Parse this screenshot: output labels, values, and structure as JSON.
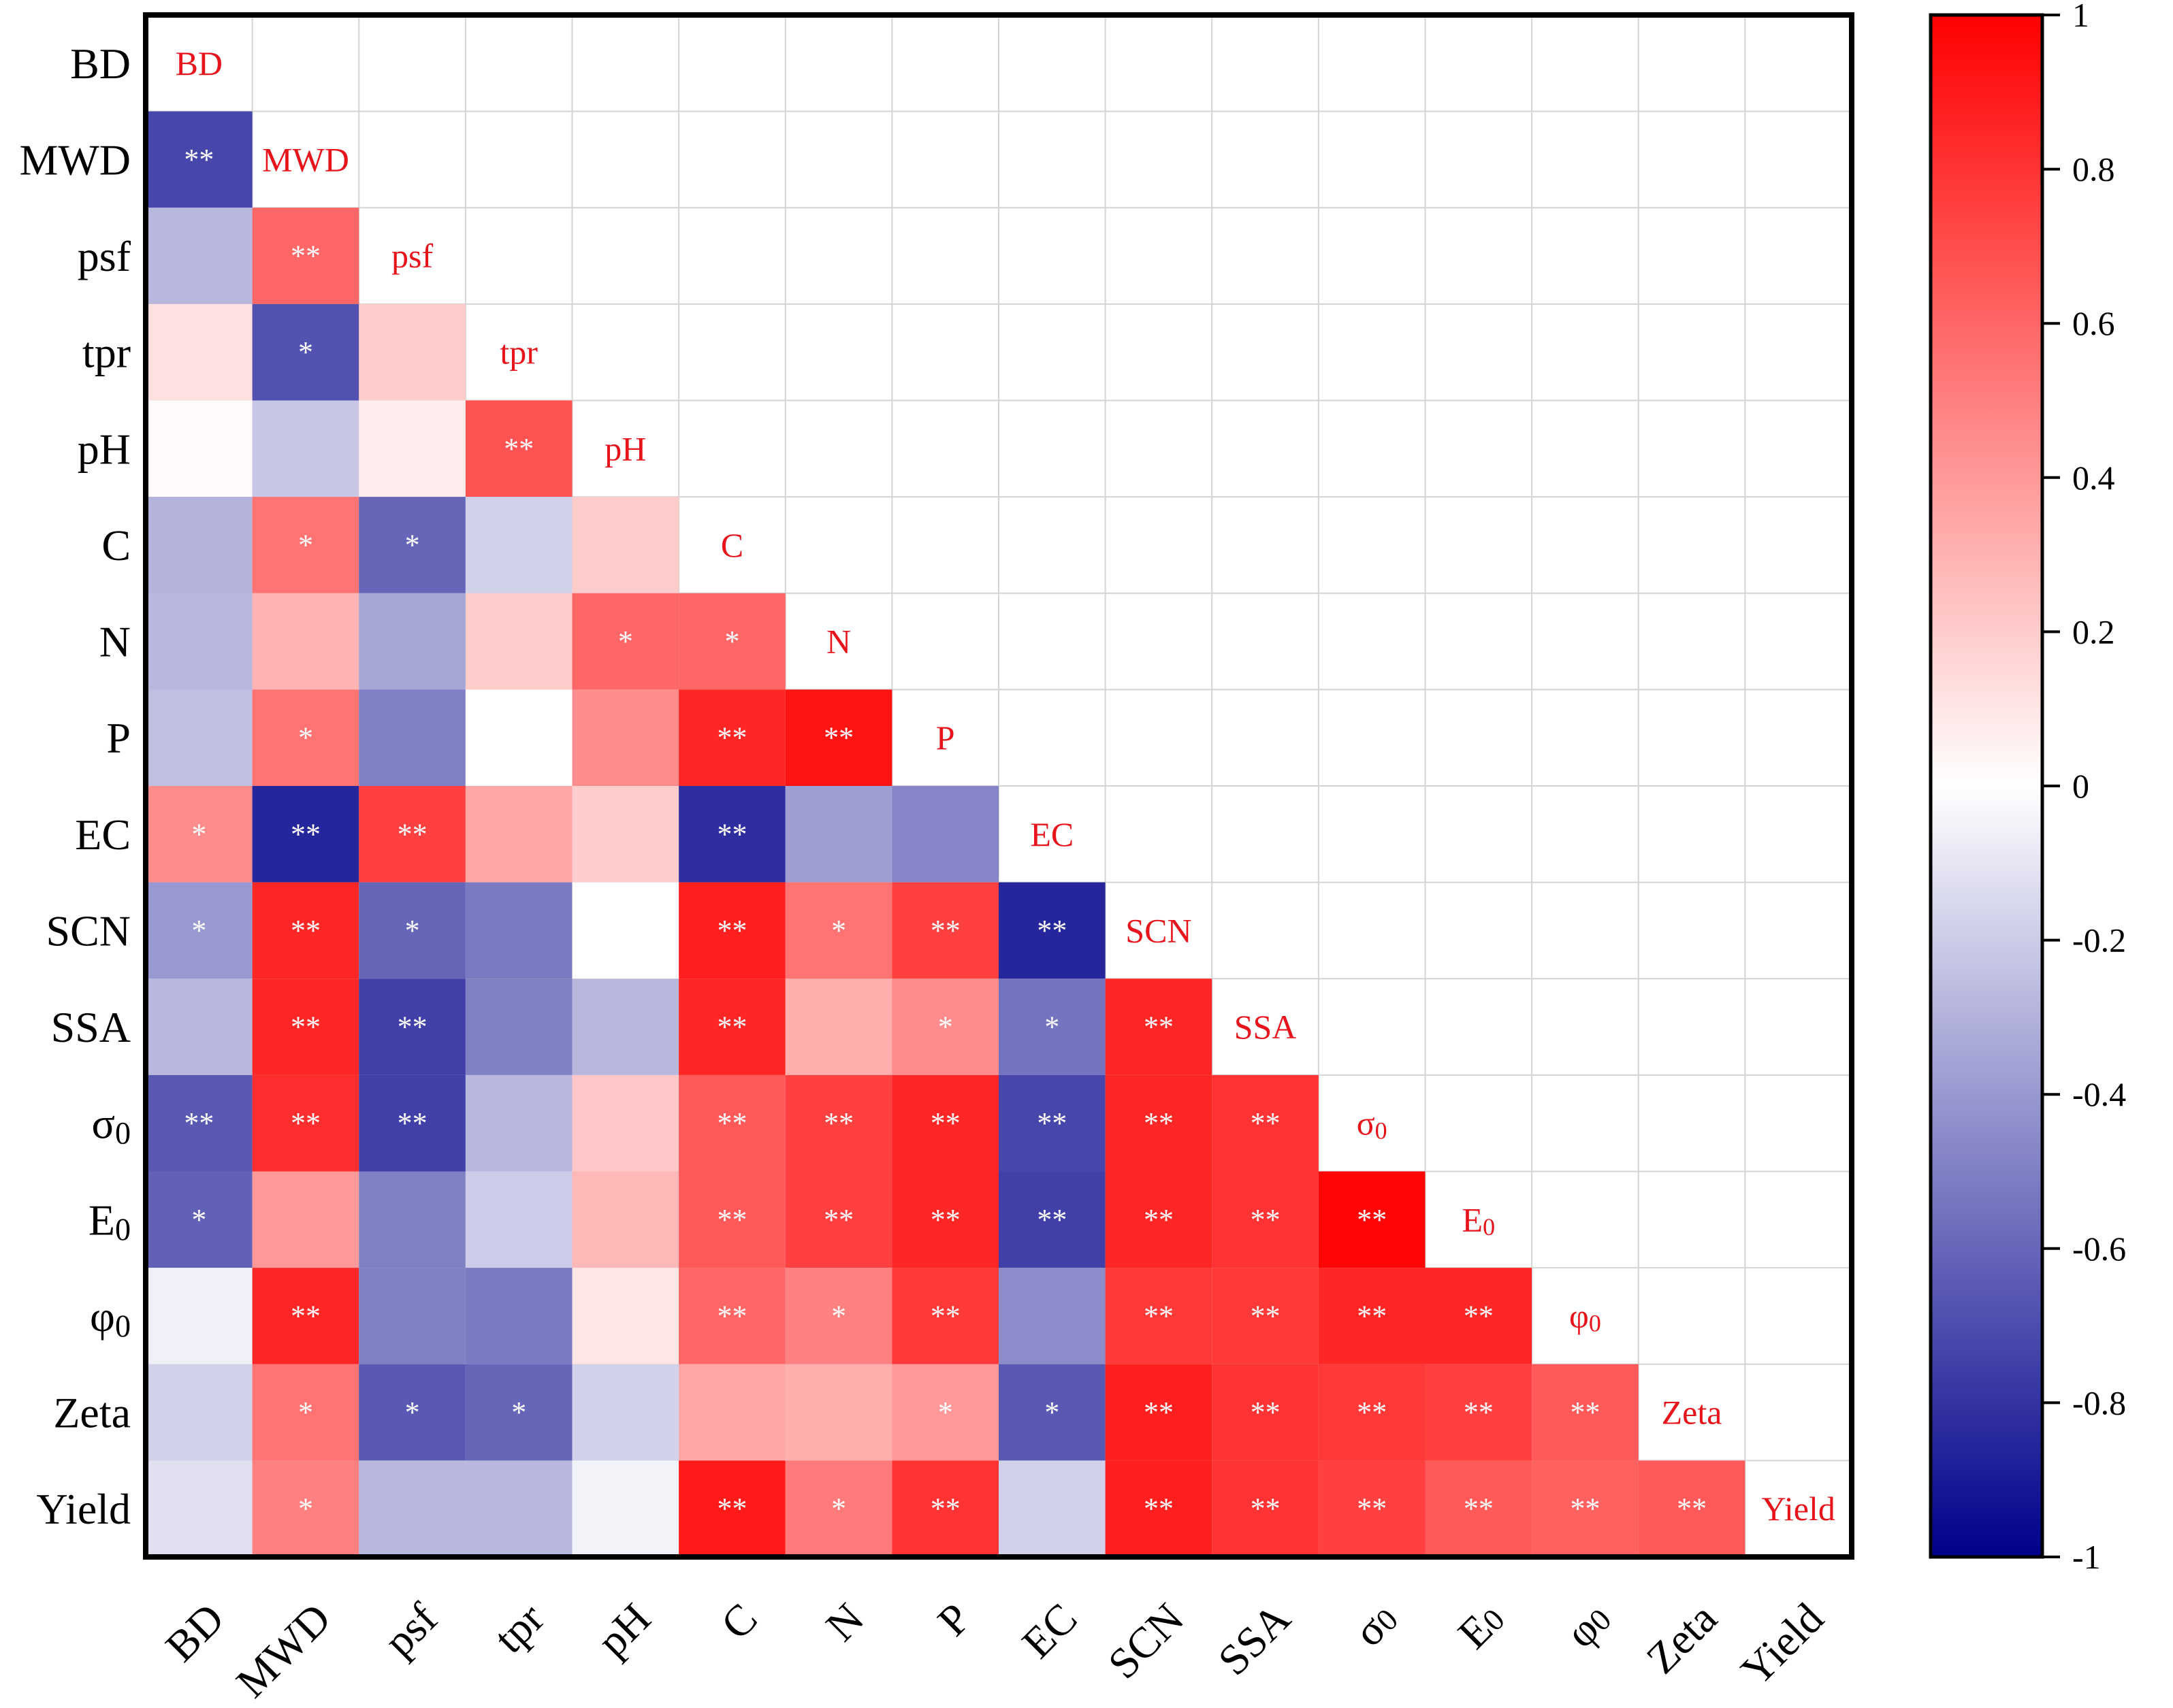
{
  "chart_data": {
    "type": "heatmap",
    "title": "",
    "variables": [
      "BD",
      "MWD",
      "psf",
      "tpr",
      "pH",
      "C",
      "N",
      "P",
      "EC",
      "SCN",
      "SSA",
      "σ0",
      "E0",
      "φ0",
      "Zeta",
      "Yield"
    ],
    "variable_labels": [
      {
        "base": "BD",
        "sub": ""
      },
      {
        "base": "MWD",
        "sub": ""
      },
      {
        "base": "psf",
        "sub": ""
      },
      {
        "base": "tpr",
        "sub": ""
      },
      {
        "base": "pH",
        "sub": ""
      },
      {
        "base": "C",
        "sub": ""
      },
      {
        "base": "N",
        "sub": ""
      },
      {
        "base": "P",
        "sub": ""
      },
      {
        "base": "EC",
        "sub": ""
      },
      {
        "base": "SCN",
        "sub": ""
      },
      {
        "base": "SSA",
        "sub": ""
      },
      {
        "base": "σ",
        "sub": "0"
      },
      {
        "base": "E",
        "sub": "0"
      },
      {
        "base": "φ",
        "sub": "0"
      },
      {
        "base": "Zeta",
        "sub": ""
      },
      {
        "base": "Yield",
        "sub": ""
      }
    ],
    "lower_triangle": [
      [],
      [
        -0.72
      ],
      [
        -0.28,
        0.6
      ],
      [
        0.12,
        -0.68,
        0.2
      ],
      [
        0.02,
        -0.22,
        0.07,
        0.68
      ],
      [
        -0.3,
        0.55,
        -0.6,
        -0.18,
        0.2
      ],
      [
        -0.28,
        0.3,
        -0.35,
        0.2,
        0.6,
        0.6
      ],
      [
        -0.25,
        0.55,
        -0.5,
        0.0,
        0.45,
        0.85,
        0.92
      ],
      [
        0.45,
        -0.85,
        0.75,
        0.35,
        0.2,
        -0.82,
        -0.38,
        -0.48
      ],
      [
        -0.4,
        0.85,
        -0.6,
        -0.52,
        0.0,
        0.88,
        0.55,
        0.75,
        -0.85
      ],
      [
        -0.28,
        0.85,
        -0.75,
        -0.5,
        -0.28,
        0.85,
        0.32,
        0.45,
        -0.55,
        0.85
      ],
      [
        -0.65,
        0.82,
        -0.75,
        -0.28,
        0.22,
        0.65,
        0.75,
        0.85,
        -0.72,
        0.85,
        0.8
      ],
      [
        -0.62,
        0.4,
        -0.5,
        -0.2,
        0.28,
        0.65,
        0.75,
        0.85,
        -0.75,
        0.85,
        0.8,
        0.98
      ],
      [
        -0.06,
        0.85,
        -0.5,
        -0.52,
        0.1,
        0.6,
        0.5,
        0.78,
        -0.45,
        0.78,
        0.78,
        0.85,
        0.85
      ],
      [
        -0.18,
        0.55,
        -0.65,
        -0.6,
        -0.18,
        0.35,
        0.32,
        0.4,
        -0.65,
        0.88,
        0.8,
        0.78,
        0.75,
        0.65
      ],
      [
        -0.12,
        0.5,
        -0.28,
        -0.28,
        -0.05,
        0.9,
        0.52,
        0.8,
        -0.18,
        0.88,
        0.8,
        0.75,
        0.65,
        0.62,
        0.65
      ]
    ],
    "significance": [
      [],
      [
        "**"
      ],
      [
        "",
        "**"
      ],
      [
        "",
        "*",
        ""
      ],
      [
        "",
        "",
        "",
        "**"
      ],
      [
        "",
        "*",
        "*",
        "",
        ""
      ],
      [
        "",
        "",
        "",
        "",
        "*",
        "*"
      ],
      [
        "",
        "*",
        "",
        "",
        "",
        "**",
        "**"
      ],
      [
        "*",
        "**",
        "**",
        "",
        "",
        "**",
        "",
        ""
      ],
      [
        "*",
        "**",
        "*",
        "",
        "",
        "**",
        "*",
        "**",
        "**"
      ],
      [
        "",
        "**",
        "**",
        "",
        "",
        "**",
        "",
        "*",
        "*",
        "**"
      ],
      [
        "**",
        "**",
        "**",
        "",
        "",
        "**",
        "**",
        "**",
        "**",
        "**",
        "**"
      ],
      [
        "*",
        "",
        "",
        "",
        "",
        "**",
        "**",
        "**",
        "**",
        "**",
        "**",
        "**"
      ],
      [
        "",
        "**",
        "",
        "",
        "",
        "**",
        "*",
        "**",
        "",
        "**",
        "**",
        "**",
        "**"
      ],
      [
        "",
        "*",
        "*",
        "*",
        "",
        "",
        "",
        "*",
        "*",
        "**",
        "**",
        "**",
        "**",
        "**"
      ],
      [
        "",
        "*",
        "",
        "",
        "",
        "**",
        "*",
        "**",
        "",
        "**",
        "**",
        "**",
        "**",
        "**",
        "**"
      ]
    ],
    "colorbar": {
      "range": [
        -1,
        1
      ],
      "ticks": [
        "1",
        "0.8",
        "0.6",
        "0.4",
        "0.2",
        "0",
        "-0.2",
        "-0.4",
        "-0.6",
        "-0.8",
        "-1"
      ],
      "tick_values": [
        1,
        0.8,
        0.6,
        0.4,
        0.2,
        0,
        -0.2,
        -0.4,
        -0.6,
        -0.8,
        -1
      ],
      "colors": {
        "positive": "#ff0000",
        "zero": "#ffffff",
        "negative": "#00008b"
      }
    },
    "diagonal_label_color": "#e8141b",
    "significance_color": "#ffffff",
    "grid": true
  }
}
